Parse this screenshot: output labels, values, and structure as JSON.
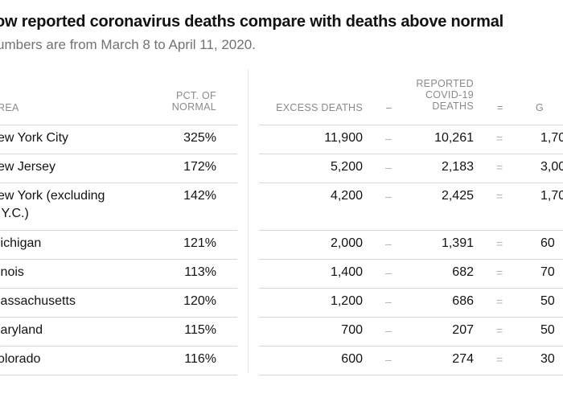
{
  "chart_data": {
    "type": "table",
    "title": "ow reported coronavirus deaths compare with deaths above normal",
    "subtitle": "umbers are from March 8 to April 11, 2020.",
    "columns": {
      "area": "REA",
      "pct": [
        "PCT. OF",
        "NORMAL"
      ],
      "excess": "EXCESS DEATHS",
      "minus": "–",
      "reported": [
        "REPORTED",
        "COVID-19",
        "DEATHS"
      ],
      "equals": "=",
      "gap": "G"
    },
    "rows": [
      {
        "area": [
          "ew York City"
        ],
        "pct": "325%",
        "excess": "11,900",
        "reported": "10,261",
        "gap": "1,70"
      },
      {
        "area": [
          "ew Jersey"
        ],
        "pct": "172%",
        "excess": "5,200",
        "reported": "2,183",
        "gap": "3,00"
      },
      {
        "area": [
          "ew York (excluding",
          ".Y.C.)"
        ],
        "pct": "142%",
        "excess": "4,200",
        "reported": "2,425",
        "gap": "1,70"
      },
      {
        "area": [
          "lichigan"
        ],
        "pct": "121%",
        "excess": "2,000",
        "reported": "1,391",
        "gap": "60"
      },
      {
        "area": [
          "inois"
        ],
        "pct": "113%",
        "excess": "1,400",
        "reported": "682",
        "gap": "70"
      },
      {
        "area": [
          "lassachusetts"
        ],
        "pct": "120%",
        "excess": "1,200",
        "reported": "686",
        "gap": "50"
      },
      {
        "area": [
          "laryland"
        ],
        "pct": "115%",
        "excess": "700",
        "reported": "207",
        "gap": "50"
      },
      {
        "area": [
          "olorado"
        ],
        "pct": "116%",
        "excess": "600",
        "reported": "274",
        "gap": "30"
      }
    ]
  }
}
